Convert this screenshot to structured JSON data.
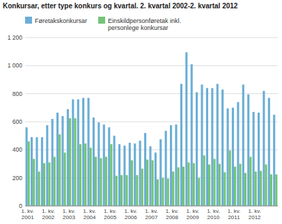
{
  "chart_data": {
    "type": "bar",
    "title": "Konkursar, etter type konkurs og kvartal. 2. kvartal 2002-2. kvartal 2012",
    "categories": [
      "1. kv.\n2001",
      null,
      null,
      null,
      "1. kv.\n2002",
      null,
      null,
      null,
      "1. kv.\n2003",
      null,
      null,
      null,
      "1. kv.\n2004",
      null,
      null,
      null,
      "1. kv.\n2005",
      null,
      null,
      null,
      "1. kv.\n2006",
      null,
      null,
      null,
      "1. kv.\n2007",
      null,
      null,
      null,
      "1. kv.\n2008",
      null,
      null,
      null,
      "1. kv.\n2009",
      null,
      null,
      null,
      "1. kv.\n2010",
      null,
      null,
      null,
      "1. kv.\n2011",
      null,
      null,
      null,
      "1. kv.\n2012",
      null,
      null,
      null,
      null
    ],
    "series": [
      {
        "name": "Føretakskonkursar",
        "color": "#6baed6",
        "values": [
          560,
          490,
          490,
          490,
          575,
          620,
          665,
          640,
          690,
          760,
          760,
          770,
          770,
          630,
          595,
          580,
          560,
          500,
          440,
          430,
          450,
          445,
          465,
          520,
          425,
          380,
          475,
          535,
          575,
          580,
          870,
          1095,
          1010,
          810,
          865,
          840,
          840,
          870,
          830,
          695,
          700,
          740,
          865,
          795,
          670,
          665,
          820,
          770,
          650
        ]
      },
      {
        "name": "Einskildpersonføretak inkl.\npersonlege konkursar",
        "color": "#74c476",
        "values": [
          460,
          335,
          245,
          305,
          310,
          350,
          510,
          380,
          625,
          625,
          440,
          445,
          415,
          350,
          340,
          350,
          440,
          215,
          220,
          220,
          325,
          220,
          265,
          330,
          325,
          190,
          200,
          195,
          245,
          275,
          280,
          310,
          305,
          200,
          360,
          295,
          335,
          300,
          240,
          395,
          280,
          300,
          235,
          350,
          245,
          250,
          295,
          225,
          225
        ]
      }
    ],
    "ylim": [
      0,
      1200
    ],
    "yticks": [
      0,
      200,
      400,
      600,
      800,
      {
        "value": 1000,
        "label": "1 000"
      },
      {
        "value": 1200,
        "label": "1 200"
      }
    ],
    "grid": true,
    "legend": "upper left"
  }
}
